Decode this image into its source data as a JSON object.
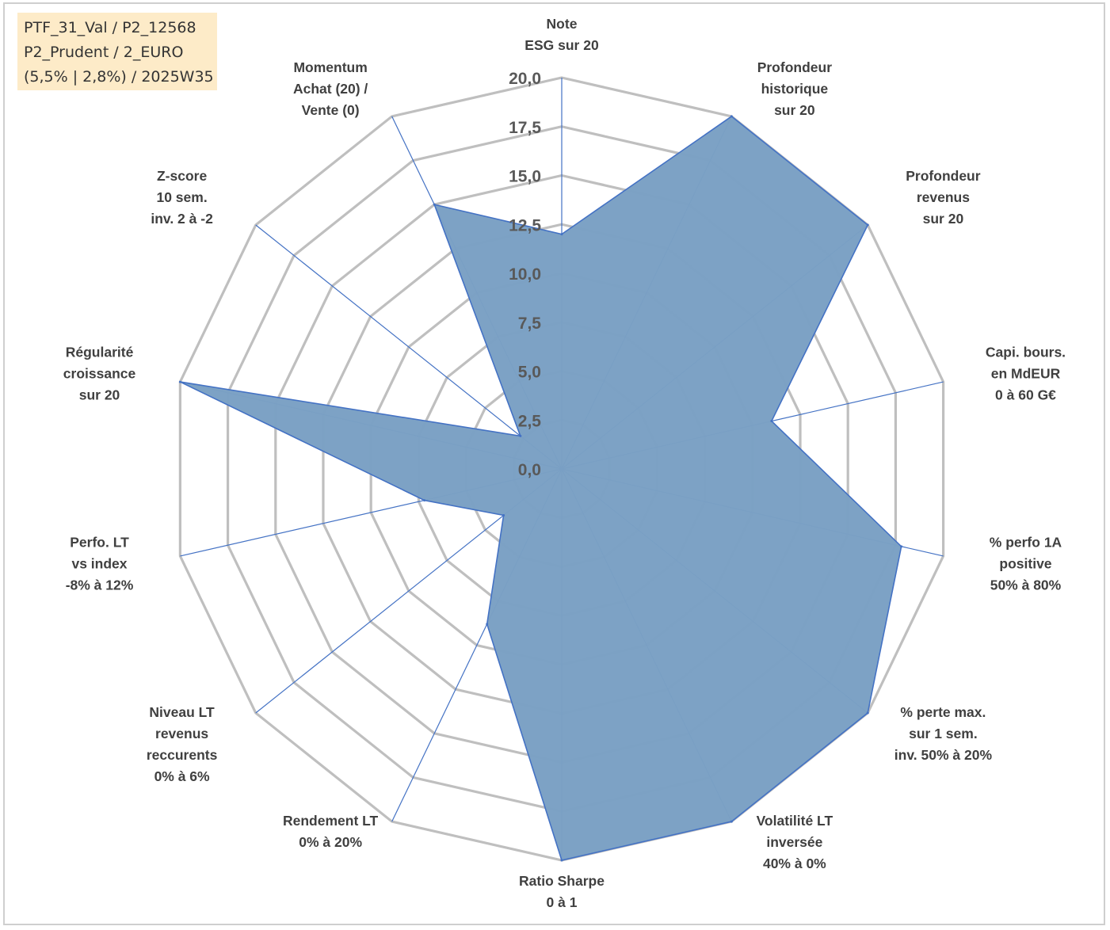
{
  "info_box": {
    "line1": "PTF_31_Val / P2_12568",
    "line2": "P2_Prudent / 2_EURO",
    "line3": "(5,5% | 2,8%) / 2025W35"
  },
  "chart_data": {
    "type": "radar",
    "title": "",
    "rlim": [
      0,
      20
    ],
    "ticks": [
      "0,0",
      "2,5",
      "5,0",
      "7,5",
      "10,0",
      "12,5",
      "15,0",
      "17,5",
      "20,0"
    ],
    "grid": true,
    "colors": {
      "fill": "#7aa0c4",
      "line": "#4472c4",
      "grid": "#bfbfbf",
      "spoke": "#4472c4"
    },
    "axes": [
      [
        "Note",
        "ESG sur 20"
      ],
      [
        "Profondeur",
        "historique",
        "sur 20"
      ],
      [
        "Profondeur",
        "revenus",
        "sur 20"
      ],
      [
        "Capi. bours.",
        "en MdEUR",
        "0 à 60 G€"
      ],
      [
        "% perfo 1A",
        "positive",
        "50% à 80%"
      ],
      [
        "% perte max.",
        "sur 1 sem.",
        "inv. 50% à 20%"
      ],
      [
        "Volatilité LT",
        "inversée",
        "40% à 0%"
      ],
      [
        "Ratio Sharpe",
        "0 à 1"
      ],
      [
        "Rendement LT",
        "0% à 20%"
      ],
      [
        "Niveau LT",
        "revenus",
        "reccurents",
        "0% à 6%"
      ],
      [
        "Perfo. LT",
        "vs index",
        "-8% à 12%"
      ],
      [
        "Régularité",
        "croissance",
        "sur 20"
      ],
      [
        "Z-score",
        "10 sem.",
        "inv. 2 à -2"
      ],
      [
        "Momentum",
        "Achat (20) /",
        "Vente (0)"
      ]
    ],
    "values": [
      12.0,
      20.0,
      20.0,
      11.0,
      17.8,
      20.0,
      20.0,
      20.0,
      8.8,
      3.8,
      7.2,
      20.0,
      2.7,
      15.0
    ]
  }
}
